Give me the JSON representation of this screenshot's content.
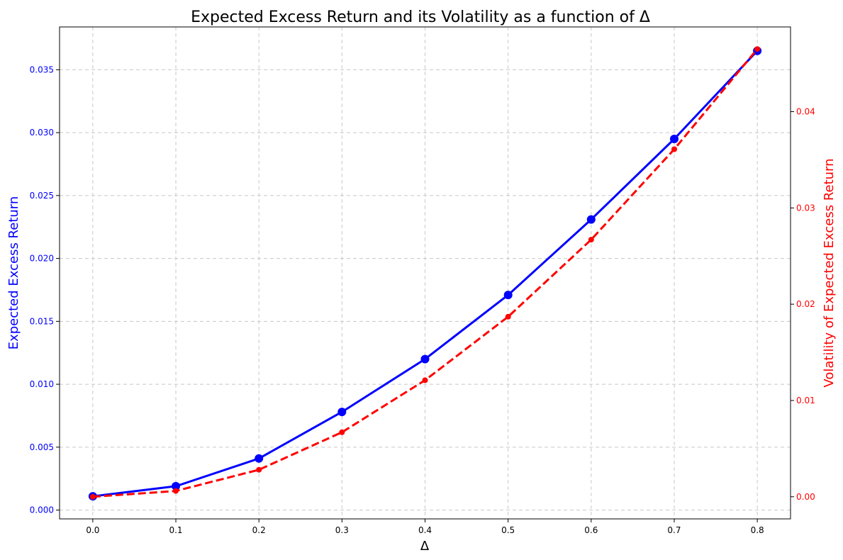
{
  "chart_data": {
    "type": "line",
    "title": "Expected Excess Return and its Volatility as a function of Δ",
    "xlabel": "Δ",
    "ylabel_left": "Expected Excess Return",
    "ylabel_right": "Volatility of Expected Excess Return",
    "x": [
      0.0,
      0.1,
      0.2,
      0.3,
      0.4,
      0.5,
      0.6,
      0.7,
      0.8
    ],
    "x_ticks": [
      "0.0",
      "0.1",
      "0.2",
      "0.3",
      "0.4",
      "0.5",
      "0.6",
      "0.7",
      "0.8"
    ],
    "xlim": [
      -0.04,
      0.84
    ],
    "left_axis": {
      "color": "#0000ff",
      "ylim": [
        -0.0007,
        0.0384
      ],
      "ticks": [
        0.0,
        0.005,
        0.01,
        0.015,
        0.02,
        0.025,
        0.03,
        0.035
      ],
      "tick_labels": [
        "0.000",
        "0.005",
        "0.010",
        "0.015",
        "0.020",
        "0.025",
        "0.030",
        "0.035"
      ]
    },
    "right_axis": {
      "color": "#ff0000",
      "ylim": [
        -0.0023,
        0.0488
      ],
      "ticks": [
        0.0,
        0.01,
        0.02,
        0.03,
        0.04
      ],
      "tick_labels": [
        "0.00",
        "0.01",
        "0.02",
        "0.03",
        "0.04"
      ]
    },
    "series": [
      {
        "axis": "left",
        "color": "#0000ff",
        "style": "solid",
        "marker": "large-circle",
        "values": [
          0.0011,
          0.0019,
          0.0041,
          0.0078,
          0.012,
          0.0171,
          0.0231,
          0.0295,
          0.0365
        ]
      },
      {
        "axis": "right",
        "color": "#ff0000",
        "style": "dashed",
        "marker": "small-circle",
        "values": [
          0.0,
          0.0006,
          0.0028,
          0.0067,
          0.0121,
          0.0187,
          0.0267,
          0.0361,
          0.0465
        ]
      }
    ],
    "grid": true,
    "legend": "none"
  }
}
